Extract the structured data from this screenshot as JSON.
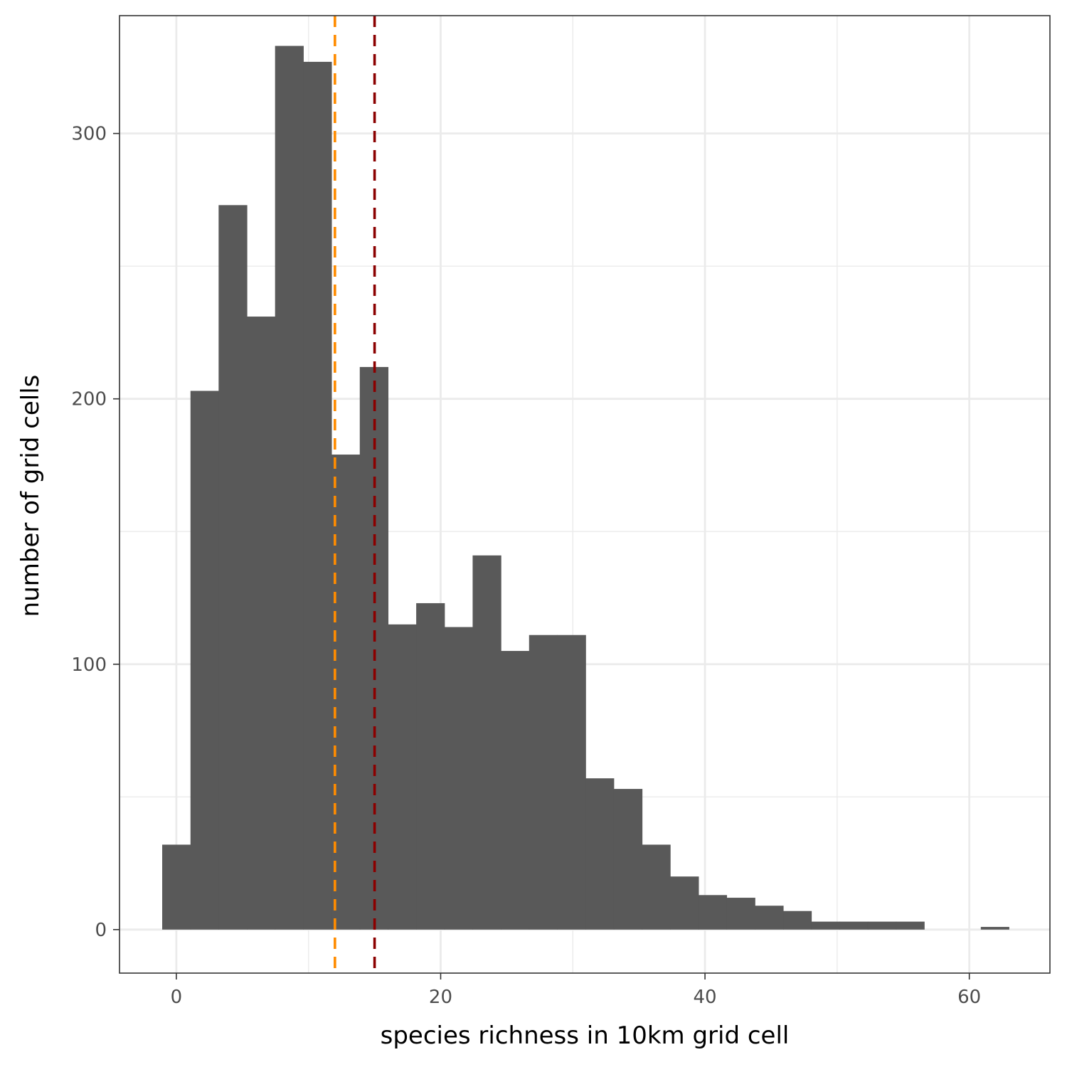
{
  "chart_data": {
    "type": "bar",
    "subtype": "histogram",
    "title": "",
    "xlabel": "species richness in 10km grid cell",
    "ylabel": "number of grid cells",
    "xlim": [
      -4.3,
      66.1
    ],
    "ylim": [
      -16.4,
      344.4
    ],
    "x_ticks": [
      0,
      20,
      40,
      60
    ],
    "y_ticks": [
      0,
      100,
      200,
      300
    ],
    "x_tick_labels": [
      "0",
      "20",
      "40",
      "60"
    ],
    "y_tick_labels": [
      "0",
      "100",
      "200",
      "300"
    ],
    "x_minor_grid": [
      10,
      30,
      50
    ],
    "y_minor_grid": [
      50,
      150,
      250
    ],
    "grid": true,
    "theme": "bw",
    "bar_color": "#595959",
    "bins": [
      {
        "x0": -1.07,
        "x1": 1.07,
        "count": 32
      },
      {
        "x0": 1.07,
        "x1": 3.2,
        "count": 203
      },
      {
        "x0": 3.2,
        "x1": 5.34,
        "count": 273
      },
      {
        "x0": 5.34,
        "x1": 7.47,
        "count": 231
      },
      {
        "x0": 7.47,
        "x1": 9.61,
        "count": 333
      },
      {
        "x0": 9.61,
        "x1": 11.74,
        "count": 327
      },
      {
        "x0": 11.74,
        "x1": 13.88,
        "count": 179
      },
      {
        "x0": 13.88,
        "x1": 16.02,
        "count": 212
      },
      {
        "x0": 16.02,
        "x1": 18.15,
        "count": 115
      },
      {
        "x0": 18.15,
        "x1": 20.29,
        "count": 123
      },
      {
        "x0": 20.29,
        "x1": 22.42,
        "count": 114
      },
      {
        "x0": 22.42,
        "x1": 24.56,
        "count": 141
      },
      {
        "x0": 24.56,
        "x1": 26.69,
        "count": 105
      },
      {
        "x0": 26.69,
        "x1": 28.83,
        "count": 111
      },
      {
        "x0": 28.83,
        "x1": 30.97,
        "count": 111
      },
      {
        "x0": 30.97,
        "x1": 33.1,
        "count": 57
      },
      {
        "x0": 33.1,
        "x1": 35.24,
        "count": 53
      },
      {
        "x0": 35.24,
        "x1": 37.37,
        "count": 32
      },
      {
        "x0": 37.37,
        "x1": 39.51,
        "count": 20
      },
      {
        "x0": 39.51,
        "x1": 41.64,
        "count": 13
      },
      {
        "x0": 41.64,
        "x1": 43.78,
        "count": 12
      },
      {
        "x0": 43.78,
        "x1": 45.92,
        "count": 9
      },
      {
        "x0": 45.92,
        "x1": 48.05,
        "count": 7
      },
      {
        "x0": 48.05,
        "x1": 50.19,
        "count": 3
      },
      {
        "x0": 50.19,
        "x1": 52.32,
        "count": 3
      },
      {
        "x0": 52.32,
        "x1": 54.46,
        "count": 3
      },
      {
        "x0": 54.46,
        "x1": 56.59,
        "count": 3
      },
      {
        "x0": 56.59,
        "x1": 58.73,
        "count": 0
      },
      {
        "x0": 58.73,
        "x1": 60.87,
        "count": 0
      },
      {
        "x0": 60.87,
        "x1": 63.0,
        "count": 1
      }
    ],
    "reference_lines": [
      {
        "x": 12.0,
        "color": "#ff8c00",
        "style": "dashed"
      },
      {
        "x": 15.0,
        "color": "#8b0000",
        "style": "dashed"
      }
    ]
  }
}
